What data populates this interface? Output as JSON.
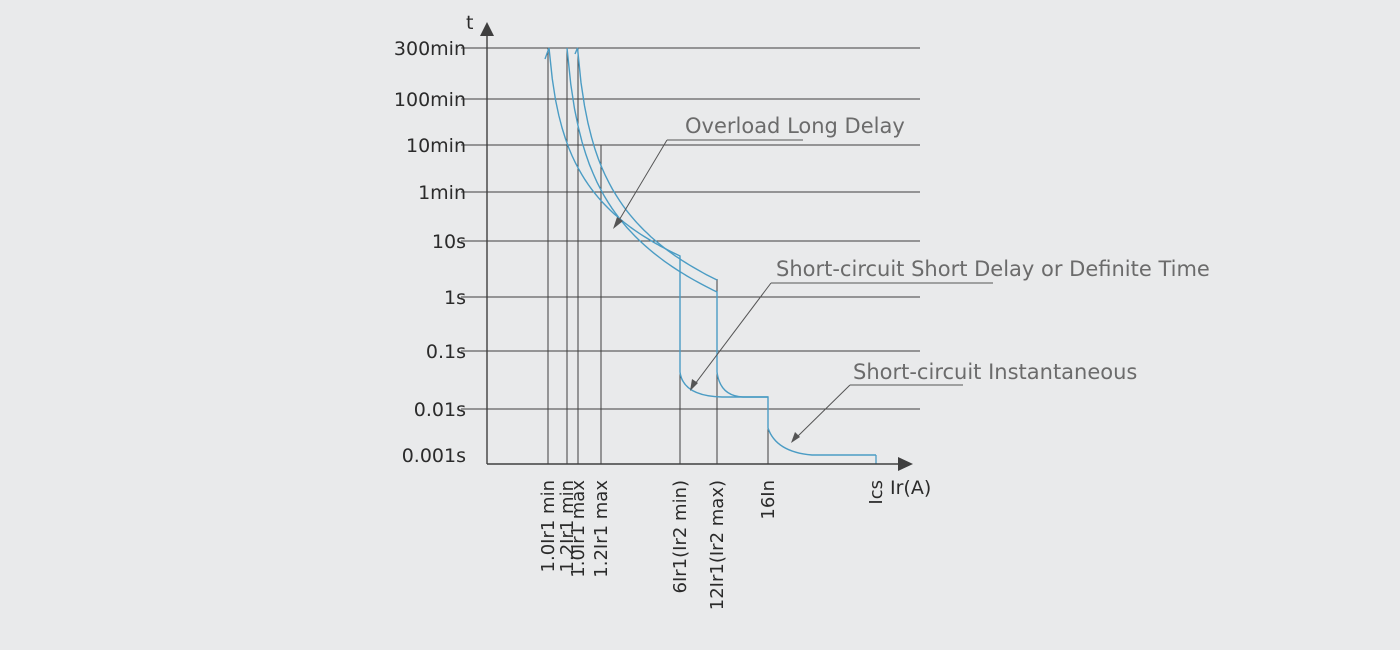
{
  "chart_data": {
    "type": "line",
    "xlabel": "Ir(A)",
    "ylabel": "t",
    "y_scale": "log",
    "grid": "horizontal",
    "y_ticks": [
      "300min",
      "100min",
      "10min",
      "1min",
      "10s",
      "1s",
      "0.1s",
      "0.01s",
      "0.001s"
    ],
    "x_ticks": [
      "1.0Ir1 min",
      "1.2Ir1 min",
      "1.0Ir1 max",
      "1.2Ir1 max",
      "6Ir1(Ir2  min)",
      "12Ir1(Ir2  max)",
      "16In",
      "Ics"
    ],
    "series": [
      {
        "x": [
          "1.0Ir1 min",
          "6Ir1(Ir2  min)",
          "6Ir1(Ir2  min)",
          "16In",
          "16In",
          "Ics"
        ],
        "y": [
          "300min",
          "1s",
          "0.01s",
          "0.01s",
          "0.001s",
          "0.001s"
        ]
      },
      {
        "x": [
          "1.2Ir1 min",
          "12Ir1(Ir2  max)",
          "12Ir1(Ir2  max)",
          "16In",
          "16In",
          "Ics"
        ],
        "y": [
          "300min",
          "1s",
          "0.01s",
          "0.01s",
          "0.001s",
          "0.001s"
        ]
      }
    ],
    "annotations": [
      "Overload Long Delay",
      "Short-circuit Short Delay or Definite Time",
      "Short-circuit Instantaneous"
    ],
    "colors": {
      "curve": "#4b9cc4",
      "axis": "#3f3f3f",
      "text": "#2b2b2b",
      "annotation": "#6b6b6b"
    }
  }
}
